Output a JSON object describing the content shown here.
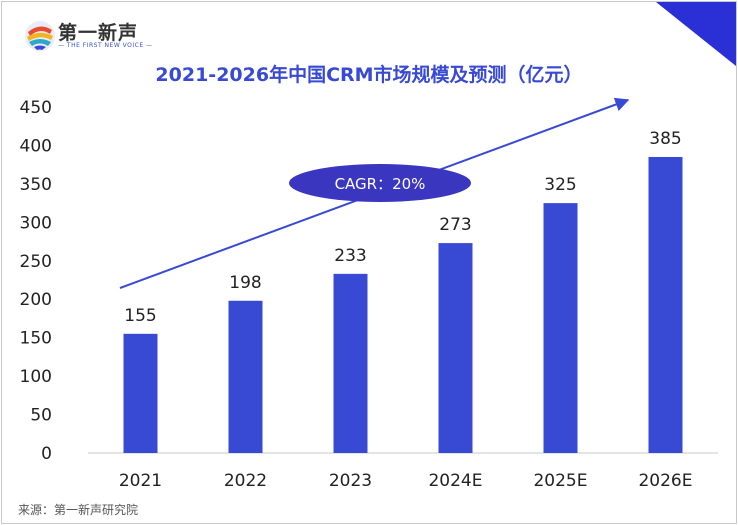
{
  "brand": {
    "name": "第一新声",
    "subtitle": "— THE FIRST NEW VOICE —"
  },
  "source": "来源：第一新声研究院",
  "colors": {
    "bar": "#3849d4",
    "title": "#3849d4",
    "ellipse": "#3a36c0",
    "corner": "#2b2fd6"
  },
  "chart_data": {
    "type": "bar",
    "title": "2021-2026年中国CRM市场规模及预测（亿元）",
    "categories": [
      "2021",
      "2022",
      "2023",
      "2024E",
      "2025E",
      "2026E"
    ],
    "values": [
      155,
      198,
      233,
      273,
      325,
      385
    ],
    "ylim": [
      0,
      450
    ],
    "yticks": [
      0,
      50,
      100,
      150,
      200,
      250,
      300,
      350,
      400,
      450
    ],
    "xlabel": "",
    "ylabel": "",
    "grid": false,
    "annotation": "CAGR：20%"
  }
}
